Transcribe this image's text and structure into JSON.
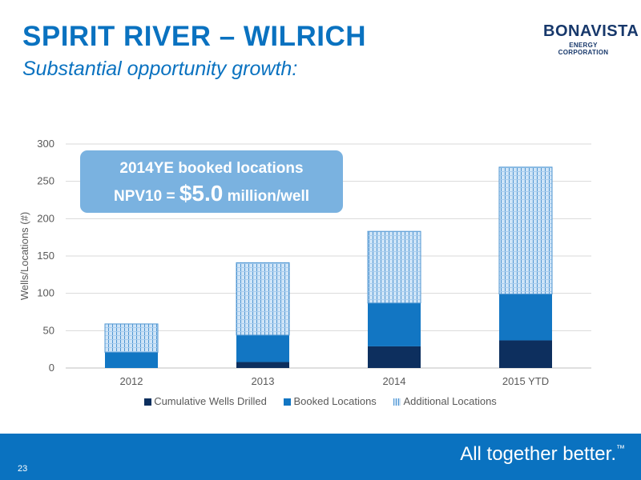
{
  "slide": {
    "title": "SPIRIT RIVER – WILRICH",
    "subtitle": "Substantial opportunity growth:",
    "logo_main": "BONAVISTA",
    "logo_sub": "ENERGY CORPORATION",
    "page_number": "23",
    "tagline": "All together better.",
    "tagline_mark": "™"
  },
  "callout": {
    "line1": "2014YE booked locations",
    "line2_prefix": "NPV10 = ",
    "line2_value": "$5.0",
    "line2_suffix": " million/well"
  },
  "colors": {
    "brand_blue": "#0a72c0",
    "navy": "#17386b",
    "drilled": "#0d2f5e",
    "booked": "#1276c3",
    "additional_fill": "#cfe4f7",
    "additional_line": "#4f96d2",
    "callout": "#7ab2e0"
  },
  "chart_data": {
    "type": "bar",
    "stacked": true,
    "title": "",
    "xlabel": "",
    "ylabel": "Wells/Locations (#)",
    "ylim": [
      0,
      300
    ],
    "yticks": [
      0,
      50,
      100,
      150,
      200,
      250,
      300
    ],
    "grid": true,
    "legend_position": "bottom",
    "categories": [
      "2012",
      "2013",
      "2014",
      "2015 YTD"
    ],
    "series": [
      {
        "name": "Cumulative Wells Drilled",
        "values": [
          0,
          8,
          29,
          37
        ]
      },
      {
        "name": "Booked Locations",
        "values": [
          21,
          36,
          58,
          62
        ]
      },
      {
        "name": "Additional Locations",
        "values": [
          38,
          97,
          96,
          170
        ]
      }
    ]
  }
}
